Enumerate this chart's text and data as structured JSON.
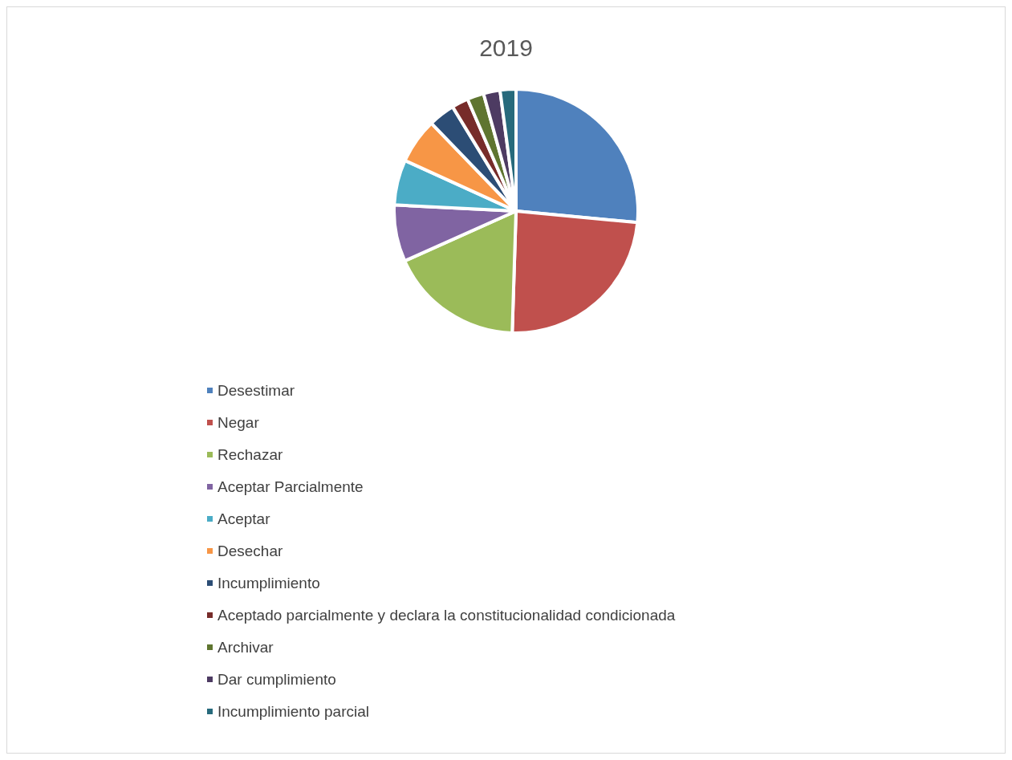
{
  "chart_data": {
    "type": "pie",
    "title": "2019",
    "categories": [
      "Desestimar",
      "Negar",
      "Rechazar",
      "Aceptar Parcialmente",
      "Aceptar",
      "Desechar",
      "Incumplimiento",
      "Aceptado parcialmente y declara la constitucionalidad condicionada",
      "Archivar",
      "Dar cumplimiento",
      "Incumplimiento parcial"
    ],
    "values": [
      26.5,
      24,
      17.8,
      7.5,
      6,
      6,
      3.5,
      2.2,
      2.2,
      2.2,
      2.1
    ],
    "colors": [
      "#4f81bd",
      "#c0504d",
      "#9bbb59",
      "#8064a2",
      "#4bacc6",
      "#f79646",
      "#2c4d75",
      "#772c2a",
      "#5f7530",
      "#4d3b62",
      "#276a7c"
    ],
    "legend": "bottom"
  }
}
